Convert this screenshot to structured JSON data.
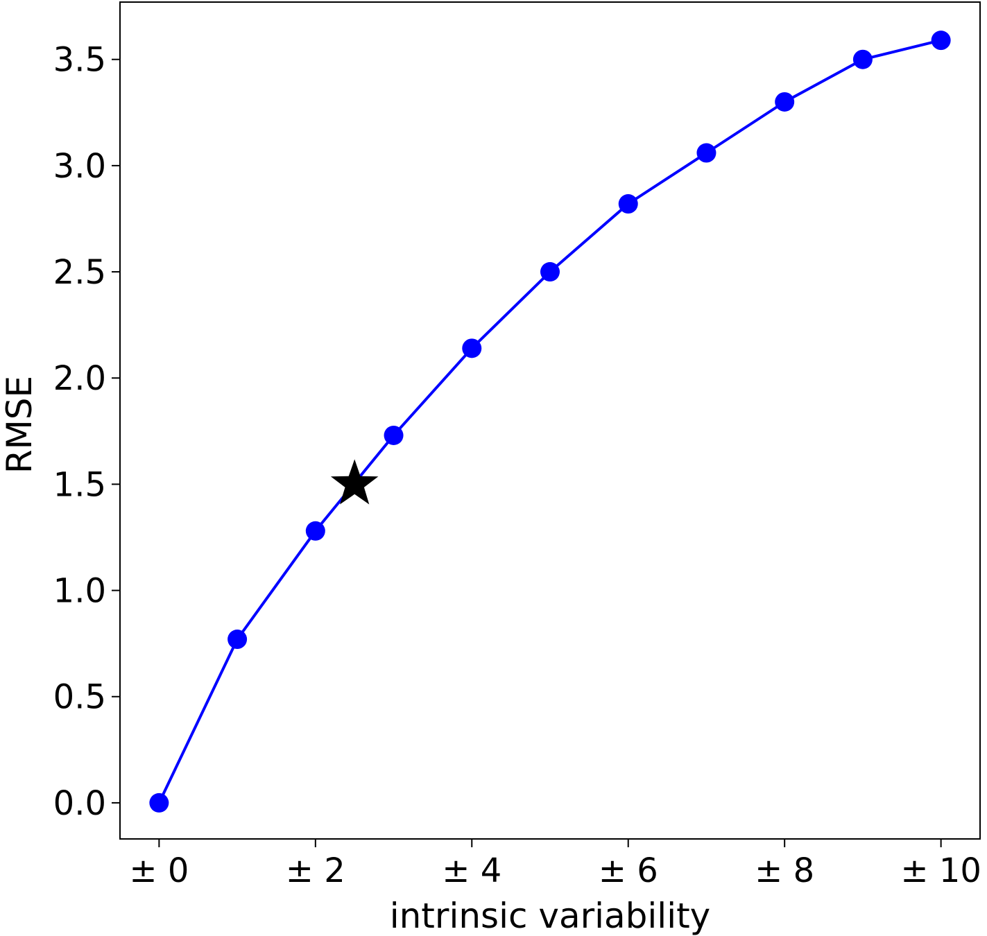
{
  "chart_data": {
    "type": "line",
    "xlabel": "intrinsic variability",
    "ylabel": "RMSE",
    "xlim": [
      -0.5,
      10.5
    ],
    "ylim": [
      -0.17,
      3.77
    ],
    "x_ticks": [
      0,
      2,
      4,
      6,
      8,
      10
    ],
    "x_tick_labels": [
      "± 0",
      "± 2",
      "± 4",
      "± 6",
      "± 8",
      "± 10"
    ],
    "y_ticks": [
      0.0,
      0.5,
      1.0,
      1.5,
      2.0,
      2.5,
      3.0,
      3.5
    ],
    "y_tick_labels": [
      "0.0",
      "0.5",
      "1.0",
      "1.5",
      "2.0",
      "2.5",
      "3.0",
      "3.5"
    ],
    "grid": false,
    "series": [
      {
        "marker": "circle",
        "color": "#0000ff",
        "x": [
          0,
          1,
          2,
          3,
          4,
          5,
          6,
          7,
          8,
          9,
          10
        ],
        "y": [
          0.0,
          0.77,
          1.28,
          1.73,
          2.14,
          2.5,
          2.82,
          3.06,
          3.3,
          3.5,
          3.59
        ]
      }
    ],
    "highlight": {
      "marker": "star",
      "color": "#000000",
      "x": 2.5,
      "y": 1.5
    }
  }
}
